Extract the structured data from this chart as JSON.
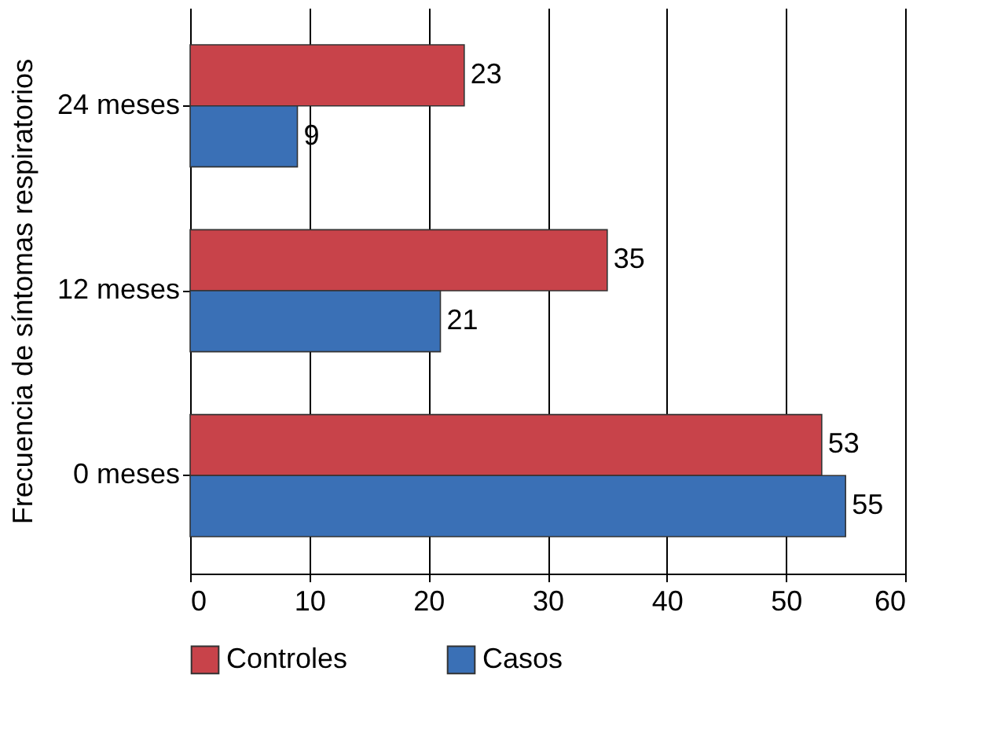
{
  "chart_data": {
    "type": "bar",
    "orientation": "horizontal",
    "ylabel": "Frecuencia de síntomas respiratorios",
    "categories": [
      "24 meses",
      "12 meses",
      "0 meses"
    ],
    "series": [
      {
        "name": "Controles",
        "color": "#c8434a",
        "values": [
          23,
          35,
          53
        ]
      },
      {
        "name": "Casos",
        "color": "#3a70b6",
        "values": [
          9,
          21,
          55
        ]
      }
    ],
    "xlim": [
      0,
      60
    ],
    "xticks": [
      0,
      10,
      20,
      30,
      40,
      50,
      60
    ],
    "grid": "x",
    "legend": "bottom",
    "data_labels": true
  }
}
